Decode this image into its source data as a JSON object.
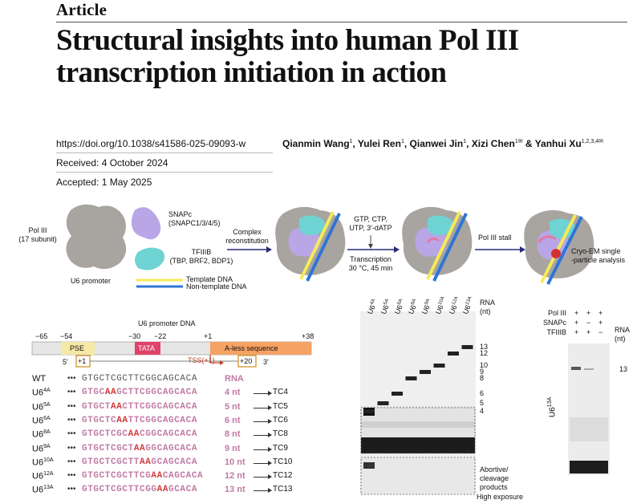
{
  "header": {
    "kicker": "Article",
    "title_line1": "Structural insights into human Pol III",
    "title_line2": "transcription initiation in action"
  },
  "meta": {
    "doi": "https://doi.org/10.1038/s41586-025-09093-w",
    "received": "Received: 4 October 2024",
    "accepted": "Accepted: 1 May 2025"
  },
  "authors": [
    {
      "name": "Qianmin Wang",
      "aff": "1"
    },
    {
      "name": "Yulei Ren",
      "aff": "1"
    },
    {
      "name": "Qianwei Jin",
      "aff": "1"
    },
    {
      "name": "Xizi Chen",
      "aff": "1✉"
    },
    {
      "name": "Yanhui Xu",
      "aff": "1,2,3,4✉"
    }
  ],
  "authors_sep": ", ",
  "authors_and": " & ",
  "schematic": {
    "pol3": "Pol III",
    "pol3_sub": "(17 subunit)",
    "snapc": "SNAPc",
    "snapc_sub": "(SNAPC1/3/4/5)",
    "tfiiib": "TFIIIB",
    "tfiiib_sub": "(TBP, BRF2, BDP1)",
    "u6_promoter": "U6 promoter",
    "template_dna": "Template DNA",
    "nontemplate_dna": "Non-template DNA",
    "complex": "Complex",
    "reconstitution": "reconstitution",
    "ntps1": "GTP, CTP,",
    "ntps2": "UTP, 3′-dATP",
    "transcription": "Transcription",
    "conditions": "30 °C, 45 min",
    "stall": "Pol III stall",
    "cryo1": "Cryo-EM single",
    "cryo2": "-particle analysis",
    "colors": {
      "pol3": "#a8a49f",
      "snapc": "#b8a6e6",
      "tfiiib": "#6fd3d3",
      "template": "#f4ea5a",
      "nontemplate": "#2f74d4",
      "rna": "#e37aa6",
      "arrow": "#2a2a7a"
    }
  },
  "promoter_map": {
    "title": "U6 promoter DNA",
    "positions": [
      "−65",
      "−54",
      "−30",
      "−22",
      "+1",
      "+38"
    ],
    "pse": "PSE",
    "tata": "TATA",
    "aless": "A-less sequence",
    "tss": "TSS(+1)",
    "p1": "+1",
    "p20": "+20",
    "five_prime": "5′",
    "three_prime": "3′",
    "colors": {
      "pse": "#f5e9a8",
      "tata": "#e0426a",
      "aless": "#f5a263",
      "bar": "#e6e6e6"
    }
  },
  "sequences": {
    "dots": "•••",
    "rows": [
      {
        "name": "WT",
        "sup": "",
        "seq": [
          [
            "wt",
            "GTGCTCGCTTCGGCAGCACA"
          ]
        ],
        "len": "RNA",
        "tc": ""
      },
      {
        "name": "U6",
        "sup": "4A",
        "seq": [
          [
            "n",
            "GTGC"
          ],
          [
            "m",
            "AA"
          ],
          [
            "n",
            "GCTTCGGCAGCACA"
          ]
        ],
        "len": "4 nt",
        "tc": "TC4"
      },
      {
        "name": "U6",
        "sup": "5A",
        "seq": [
          [
            "n",
            "GTGCT"
          ],
          [
            "m",
            "AA"
          ],
          [
            "n",
            "CTTCGGCAGCACA"
          ]
        ],
        "len": "5 nt",
        "tc": "TC5"
      },
      {
        "name": "U6",
        "sup": "6A",
        "seq": [
          [
            "n",
            "GTGCTC"
          ],
          [
            "m",
            "AA"
          ],
          [
            "n",
            "TTCGGCAGCACA"
          ]
        ],
        "len": "6 nt",
        "tc": "TC6"
      },
      {
        "name": "U6",
        "sup": "8A",
        "seq": [
          [
            "n",
            "GTGCTCGC"
          ],
          [
            "m",
            "AA"
          ],
          [
            "n",
            "CGGCAGCACA"
          ]
        ],
        "len": "8 nt",
        "tc": "TC8"
      },
      {
        "name": "U6",
        "sup": "9A",
        "seq": [
          [
            "n",
            "GTGCTCGCT"
          ],
          [
            "m",
            "AA"
          ],
          [
            "n",
            "GGCAGCACA"
          ]
        ],
        "len": "9 nt",
        "tc": "TC9"
      },
      {
        "name": "U6",
        "sup": "10A",
        "seq": [
          [
            "n",
            "GTGCTCGCTT"
          ],
          [
            "m",
            "AA"
          ],
          [
            "n",
            "GCAGCACA"
          ]
        ],
        "len": "10 nt",
        "tc": "TC10"
      },
      {
        "name": "U6",
        "sup": "12A",
        "seq": [
          [
            "n",
            "GTGCTCGCTTCG"
          ],
          [
            "m",
            "AA"
          ],
          [
            "n",
            "CAGCACA"
          ]
        ],
        "len": "12 nt",
        "tc": "TC12"
      },
      {
        "name": "U6",
        "sup": "13A",
        "seq": [
          [
            "n",
            "GTGCTCGCTTCGG"
          ],
          [
            "m",
            "AA"
          ],
          [
            "n",
            "GCACA"
          ]
        ],
        "len": "13 nt",
        "tc": "TC13"
      }
    ]
  },
  "gel1": {
    "lanes": [
      {
        "name": "U6",
        "sup": "4A",
        "band_nt": 4
      },
      {
        "name": "U6",
        "sup": "5A",
        "band_nt": 5
      },
      {
        "name": "U6",
        "sup": "6A",
        "band_nt": 6
      },
      {
        "name": "U6",
        "sup": "8A",
        "band_nt": 8
      },
      {
        "name": "U6",
        "sup": "9A",
        "band_nt": 9
      },
      {
        "name": "U6",
        "sup": "10A",
        "band_nt": 10
      },
      {
        "name": "U6",
        "sup": "12A",
        "band_nt": 12
      },
      {
        "name": "U6",
        "sup": "13A",
        "band_nt": 13
      }
    ],
    "rna_label": "RNA",
    "nt_label": "(nt)",
    "markers": [
      "13",
      "12",
      "10",
      "9",
      "8",
      "6",
      "5",
      "4"
    ],
    "abortive": "Abortive/",
    "cleavage": "cleavage",
    "products": "products",
    "high_exposure": "High exposure"
  },
  "gel2": {
    "rows": [
      {
        "label": "Pol III",
        "signs": [
          "+",
          "+",
          "+"
        ]
      },
      {
        "label": "SNAPc",
        "signs": [
          "+",
          "−",
          "+"
        ]
      },
      {
        "label": "TFIIIB",
        "signs": [
          "+",
          "+",
          "−"
        ]
      }
    ],
    "rna_label": "RNA",
    "nt_label": "(nt)",
    "marker": "13",
    "lane_name": "U6",
    "lane_sup": "13A"
  }
}
